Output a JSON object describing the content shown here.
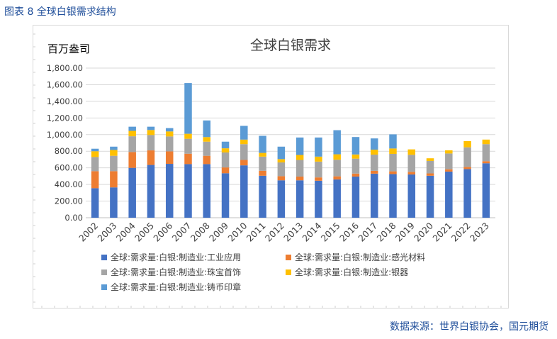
{
  "figure_caption": "图表 8  全球白银需求结构",
  "source": "数据来源：世界白银协会，国元期货",
  "chart_data": {
    "type": "bar",
    "stacked": true,
    "title": "全球白银需求",
    "unit_label": "百万盎司",
    "xlabel": "",
    "ylabel": "",
    "ylim": [
      0,
      1800
    ],
    "yticks": [
      "0.00",
      "200.00",
      "400.00",
      "600.00",
      "800.00",
      "1,000.00",
      "1,200.00",
      "1,400.00",
      "1,600.00",
      "1,800.00"
    ],
    "grid": true,
    "legend_position": "bottom",
    "categories": [
      "2002",
      "2003",
      "2004",
      "2005",
      "2006",
      "2007",
      "2008",
      "2009",
      "2010",
      "2011",
      "2012",
      "2013",
      "2014",
      "2015",
      "2016",
      "2017",
      "2018",
      "2019",
      "2020",
      "2021",
      "2022",
      "2023"
    ],
    "series": [
      {
        "name": "全球:需求量:白银:制造业:工业应用",
        "color": "#4472c4",
        "values": [
          355,
          365,
          600,
          635,
          648,
          645,
          645,
          535,
          630,
          505,
          450,
          450,
          445,
          460,
          495,
          530,
          525,
          520,
          505,
          555,
          585,
          655
        ]
      },
      {
        "name": "全球:需求量:白银:制造业:感光材料",
        "color": "#ed7d31",
        "values": [
          205,
          195,
          190,
          175,
          150,
          125,
          100,
          70,
          65,
          60,
          50,
          45,
          40,
          38,
          36,
          34,
          33,
          32,
          28,
          28,
          27,
          25
        ]
      },
      {
        "name": "全球:需求量:白银:制造业:珠宝首饰",
        "color": "#a5a5a5",
        "values": [
          170,
          185,
          190,
          185,
          180,
          180,
          170,
          180,
          190,
          170,
          165,
          200,
          190,
          200,
          180,
          195,
          210,
          205,
          150,
          190,
          235,
          205
        ]
      },
      {
        "name": "全球:需求量:白银:制造业:银器",
        "color": "#ffc000",
        "values": [
          70,
          70,
          65,
          60,
          60,
          60,
          55,
          50,
          55,
          45,
          40,
          60,
          60,
          65,
          50,
          60,
          65,
          65,
          32,
          38,
          75,
          55
        ]
      },
      {
        "name": "全球:需求量:白银:制造业:铸币印章",
        "color": "#5b9bd5",
        "values": [
          30,
          40,
          50,
          40,
          40,
          610,
          200,
          80,
          165,
          205,
          150,
          210,
          230,
          290,
          210,
          135,
          170,
          0,
          0,
          0,
          0,
          0
        ]
      }
    ]
  }
}
